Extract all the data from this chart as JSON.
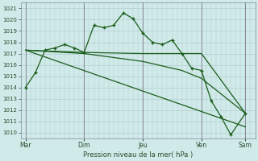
{
  "background_color": "#d0eaea",
  "grid_color": "#b0cccc",
  "line_color": "#1a5c1a",
  "vline_color": "#888899",
  "text_color": "#2a4a2a",
  "xlabel_text": "Pression niveau de la mer( hPa )",
  "ylim": [
    1009.5,
    1021.5
  ],
  "yticks": [
    1010,
    1011,
    1012,
    1013,
    1014,
    1015,
    1016,
    1017,
    1018,
    1019,
    1020,
    1021
  ],
  "xlim": [
    0,
    48
  ],
  "x_day_labels": [
    "Mar",
    "Dim",
    "Jeu",
    "Ven",
    "Sam"
  ],
  "x_day_positions": [
    1,
    13,
    25,
    37,
    46
  ],
  "series1_marked": {
    "x": [
      1,
      3,
      5,
      7,
      9,
      11,
      13,
      15,
      17,
      19,
      21,
      23,
      25,
      27,
      29,
      31,
      33,
      35,
      37,
      39,
      41,
      43,
      46
    ],
    "y": [
      1014.0,
      1015.3,
      1017.3,
      1017.5,
      1017.8,
      1017.5,
      1017.1,
      1019.5,
      1019.3,
      1019.5,
      1020.6,
      1020.1,
      1018.8,
      1018.0,
      1017.8,
      1018.2,
      1017.0,
      1015.7,
      1015.5,
      1012.8,
      1011.4,
      1009.8,
      1011.7
    ]
  },
  "series2_flat": {
    "x": [
      1,
      13,
      25,
      33,
      37,
      46
    ],
    "y": [
      1017.3,
      1017.1,
      1017.0,
      1017.0,
      1017.0,
      1011.7
    ]
  },
  "series3_gentle": {
    "x": [
      1,
      13,
      25,
      33,
      37,
      46
    ],
    "y": [
      1017.3,
      1017.0,
      1016.3,
      1015.5,
      1014.8,
      1011.7
    ]
  },
  "series4_steep": {
    "x": [
      1,
      46
    ],
    "y": [
      1017.3,
      1010.5
    ]
  }
}
